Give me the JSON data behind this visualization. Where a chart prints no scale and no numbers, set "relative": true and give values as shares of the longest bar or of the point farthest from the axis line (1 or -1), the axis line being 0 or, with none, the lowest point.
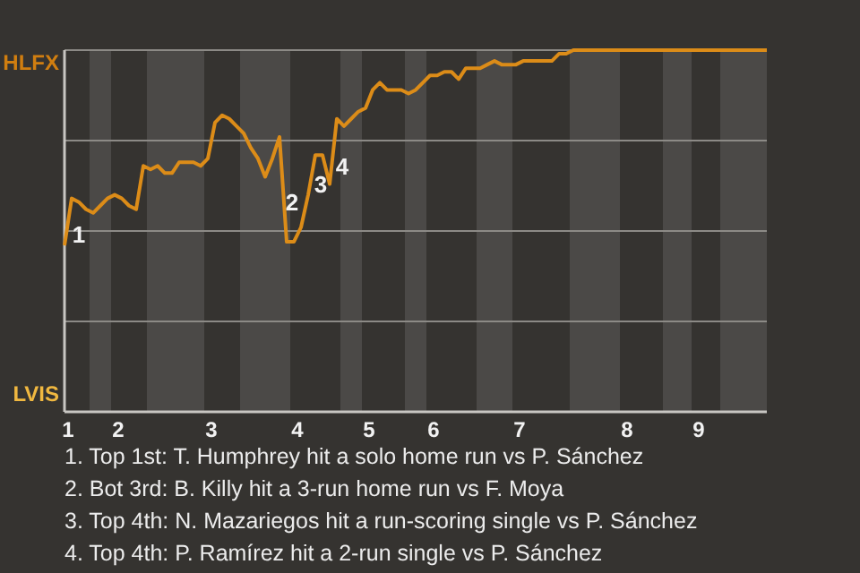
{
  "chart_data": {
    "type": "line",
    "categories": [
      "1",
      null,
      null,
      null,
      null,
      null,
      null,
      "2",
      null,
      null,
      null,
      null,
      null,
      null,
      null,
      null,
      null,
      null,
      null,
      null,
      "3",
      null,
      null,
      null,
      null,
      null,
      null,
      null,
      null,
      null,
      null,
      null,
      "4",
      null,
      null,
      null,
      null,
      null,
      null,
      null,
      null,
      null,
      "5",
      null,
      null,
      null,
      null,
      null,
      null,
      null,
      null,
      "6",
      null,
      null,
      null,
      null,
      null,
      null,
      null,
      null,
      null,
      null,
      null,
      "7",
      null,
      null,
      null,
      null,
      null,
      null,
      null,
      null,
      null,
      null,
      null,
      null,
      null,
      null,
      "8",
      null,
      null,
      null,
      null,
      null,
      null,
      null,
      null,
      null,
      "9",
      null,
      null,
      null,
      null,
      null,
      null,
      null,
      null,
      null,
      null
    ],
    "series": [
      {
        "color": "#dc8c18",
        "values": [
          0.46,
          0.59,
          0.58,
          0.56,
          0.55,
          0.57,
          0.59,
          0.6,
          0.59,
          0.57,
          0.56,
          0.68,
          0.67,
          0.68,
          0.66,
          0.66,
          0.69,
          0.69,
          0.69,
          0.68,
          0.7,
          0.8,
          0.82,
          0.81,
          0.79,
          0.77,
          0.73,
          0.7,
          0.65,
          0.7,
          0.76,
          0.47,
          0.47,
          0.51,
          0.6,
          0.71,
          0.71,
          0.63,
          0.81,
          0.79,
          0.81,
          0.83,
          0.84,
          0.89,
          0.91,
          0.89,
          0.89,
          0.89,
          0.88,
          0.89,
          0.91,
          0.93,
          0.93,
          0.94,
          0.94,
          0.92,
          0.95,
          0.95,
          0.95,
          0.96,
          0.97,
          0.96,
          0.96,
          0.96,
          0.97,
          0.97,
          0.97,
          0.97,
          0.97,
          0.99,
          0.99,
          1,
          1,
          1,
          1,
          1,
          1,
          1,
          1,
          1,
          1,
          1,
          1,
          1,
          1,
          1,
          1,
          1,
          1,
          1,
          1,
          1,
          1,
          1,
          1,
          1,
          1,
          1,
          1
        ]
      }
    ],
    "relative": true,
    "grid": "y",
    "annotations": [
      "1",
      "2",
      "3",
      "4",
      "HLFX",
      "LVIS",
      "1. Top 1st: T. Humphrey hit a solo home run vs P. Sánchez",
      "2. Bot 3rd: B. Killy hit a 3-run home run vs F. Moya",
      "3. Top 4th: N. Mazariegos hit a run-scoring single vs P. Sánchez",
      "4. Top 4th: P. Ramírez hit a 2-run single vs P. Sánchez"
    ]
  }
}
